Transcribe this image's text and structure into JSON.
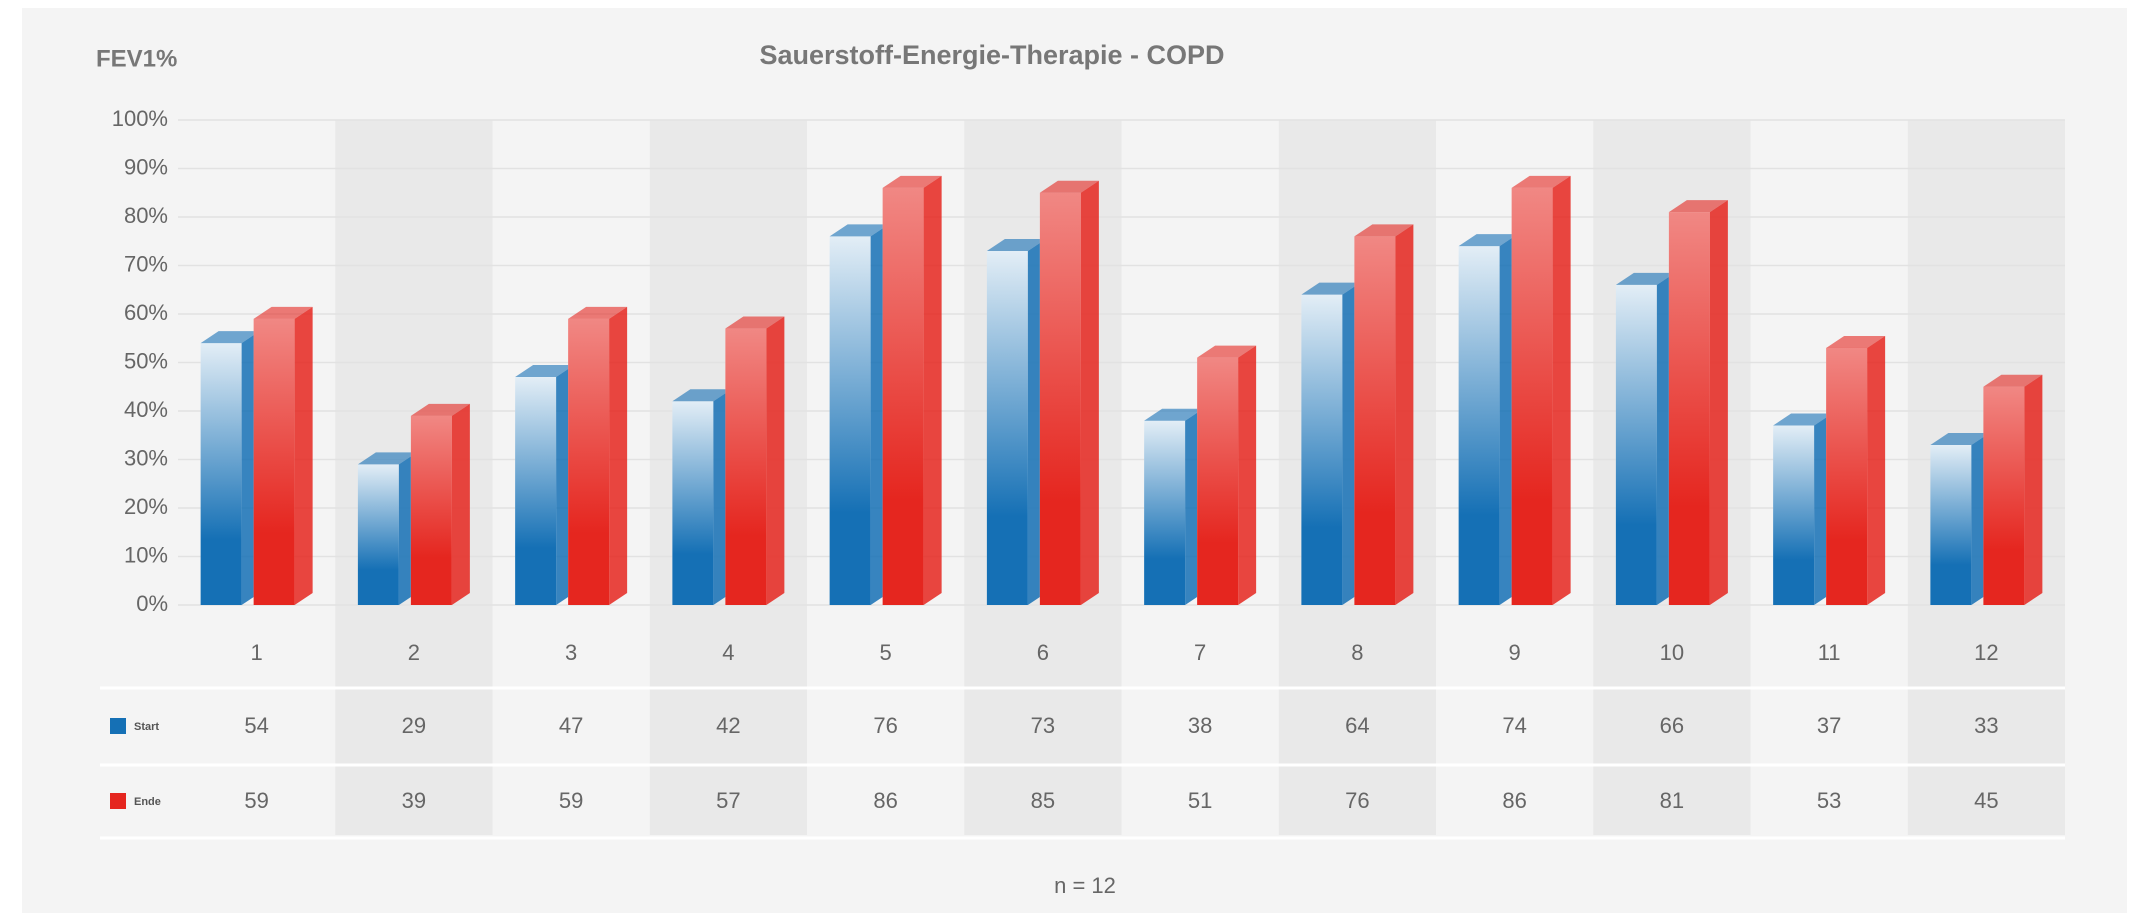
{
  "chart_data": {
    "type": "bar",
    "title": "Sauerstoff-Energie-Therapie - COPD",
    "y_label": "FEV1%",
    "note": "n = 12",
    "categories": [
      "1",
      "2",
      "3",
      "4",
      "5",
      "6",
      "7",
      "8",
      "9",
      "10",
      "11",
      "12"
    ],
    "series": [
      {
        "name": "Start",
        "color": "#1570b5",
        "values": [
          54,
          29,
          47,
          42,
          76,
          73,
          38,
          64,
          74,
          66,
          37,
          33
        ]
      },
      {
        "name": "Ende",
        "color": "#e5261f",
        "values": [
          59,
          39,
          59,
          57,
          86,
          85,
          51,
          76,
          86,
          81,
          53,
          45
        ]
      }
    ],
    "ylim": [
      0,
      100
    ],
    "yticks": [
      {
        "value": 0,
        "label": "0%"
      },
      {
        "value": 10,
        "label": "10%"
      },
      {
        "value": 20,
        "label": "20%"
      },
      {
        "value": 30,
        "label": "30%"
      },
      {
        "value": 40,
        "label": "40%"
      },
      {
        "value": 50,
        "label": "50%"
      },
      {
        "value": 60,
        "label": "60%"
      },
      {
        "value": 70,
        "label": "70%"
      },
      {
        "value": 80,
        "label": "80%"
      },
      {
        "value": 90,
        "label": "90%"
      },
      {
        "value": 100,
        "label": "100%"
      }
    ],
    "grid": true
  }
}
